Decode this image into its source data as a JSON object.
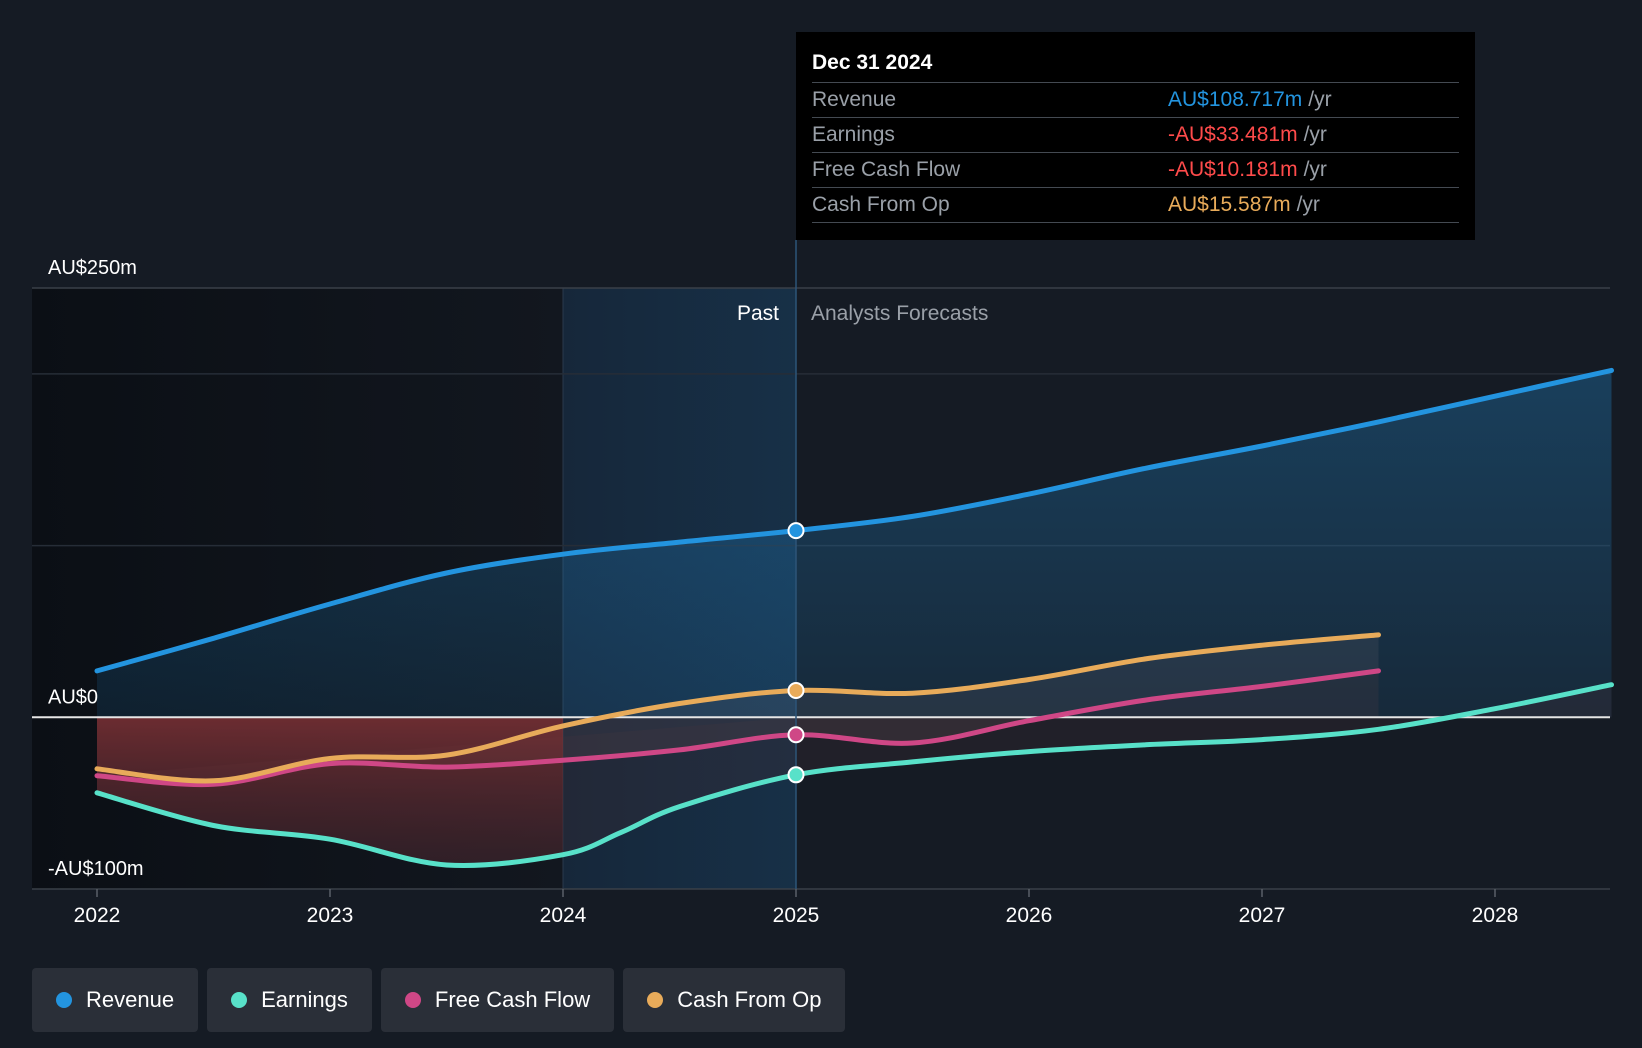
{
  "colors": {
    "revenue": "#2394df",
    "earnings": "#58e1c9",
    "fcf": "#cf4786",
    "cfo": "#e8ab5a",
    "negative": "#ff4b4b",
    "background": "#151b24"
  },
  "tooltip": {
    "date": "Dec 31 2024",
    "rows": [
      {
        "label": "Revenue",
        "value": "AU$108.717m",
        "unit": "/yr",
        "color": "#2394df"
      },
      {
        "label": "Earnings",
        "value": "-AU$33.481m",
        "unit": "/yr",
        "color": "#ff4b4b"
      },
      {
        "label": "Free Cash Flow",
        "value": "-AU$10.181m",
        "unit": "/yr",
        "color": "#ff4b4b"
      },
      {
        "label": "Cash From Op",
        "value": "AU$15.587m",
        "unit": "/yr",
        "color": "#e8ab5a"
      }
    ]
  },
  "legend": [
    {
      "label": "Revenue",
      "color": "#2394df"
    },
    {
      "label": "Earnings",
      "color": "#58e1c9"
    },
    {
      "label": "Free Cash Flow",
      "color": "#cf4786"
    },
    {
      "label": "Cash From Op",
      "color": "#e8ab5a"
    }
  ],
  "chart_data": {
    "type": "line",
    "title": "",
    "xlabel": "",
    "ylabel": "",
    "xlim": [
      2021.75,
      2028.5
    ],
    "ylim": [
      -100,
      250
    ],
    "x_ticks": [
      2022,
      2023,
      2024,
      2025,
      2026,
      2027,
      2028
    ],
    "x_tick_labels": [
      "2022",
      "2023",
      "2024",
      "2025",
      "2026",
      "2027",
      "2028"
    ],
    "y_ticks": [
      -100,
      0,
      250
    ],
    "y_tick_labels": [
      "-AU$100m",
      "AU$0",
      "AU$250m"
    ],
    "gridlines_y": [
      250,
      200,
      100,
      0,
      -100
    ],
    "past_label": "Past",
    "forecast_label": "Analysts Forecasts",
    "divider_x": 2025,
    "highlight_start_x": 2024,
    "marker_x": 2025,
    "series": [
      {
        "name": "Revenue",
        "key": "revenue",
        "color": "#2394df",
        "x": [
          2022,
          2022.5,
          2023,
          2023.5,
          2024,
          2024.5,
          2025,
          2025.5,
          2026,
          2026.5,
          2027,
          2027.5,
          2028,
          2028.5
        ],
        "y": [
          27,
          46,
          66,
          84,
          95,
          102,
          108.7,
          117,
          130,
          145,
          158,
          172,
          187,
          202
        ]
      },
      {
        "name": "Earnings",
        "key": "earnings",
        "color": "#58e1c9",
        "x": [
          2022,
          2022.5,
          2023,
          2023.5,
          2024,
          2024.25,
          2024.5,
          2025,
          2025.5,
          2026,
          2026.5,
          2027,
          2027.5,
          2028,
          2028.5
        ],
        "y": [
          -44,
          -63,
          -71,
          -86,
          -80,
          -67,
          -52,
          -33.5,
          -26,
          -20,
          -16,
          -13,
          -7,
          5,
          19
        ]
      },
      {
        "name": "Free Cash Flow",
        "key": "fcf",
        "color": "#cf4786",
        "x": [
          2022,
          2022.5,
          2023,
          2023.5,
          2024,
          2024.5,
          2025,
          2025.5,
          2026,
          2026.5,
          2027,
          2027.5
        ],
        "y": [
          -34,
          -39,
          -27,
          -29,
          -25,
          -19,
          -10.2,
          -15,
          -2,
          10,
          18,
          27
        ]
      },
      {
        "name": "Cash From Op",
        "key": "cfo",
        "color": "#e8ab5a",
        "x": [
          2022,
          2022.5,
          2023,
          2023.5,
          2024,
          2024.5,
          2025,
          2025.5,
          2026,
          2026.5,
          2027,
          2027.5
        ],
        "y": [
          -30,
          -37,
          -24,
          -22,
          -5,
          8,
          15.6,
          14,
          22,
          34,
          42,
          48
        ]
      }
    ]
  }
}
